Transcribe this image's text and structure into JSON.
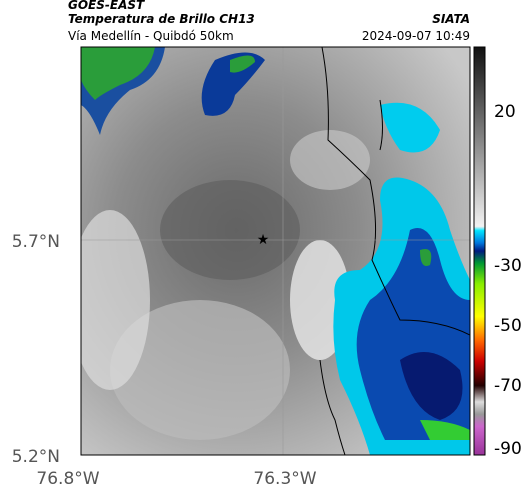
{
  "header": {
    "title": "GOES-EAST",
    "subtitle": "Temperatura de Brillo CH13",
    "source": "SIATA",
    "region": "Vía Medellín - Quibdó 50km",
    "datetime": "2024-09-07 10:49"
  },
  "map": {
    "lat_labels": [
      "5.7°N",
      "5.2°N"
    ],
    "lon_labels": [
      "76.8°W",
      "76.3°W"
    ]
  },
  "colorbar": {
    "ticks": [
      20,
      -30,
      -50,
      -70,
      -90
    ]
  }
}
